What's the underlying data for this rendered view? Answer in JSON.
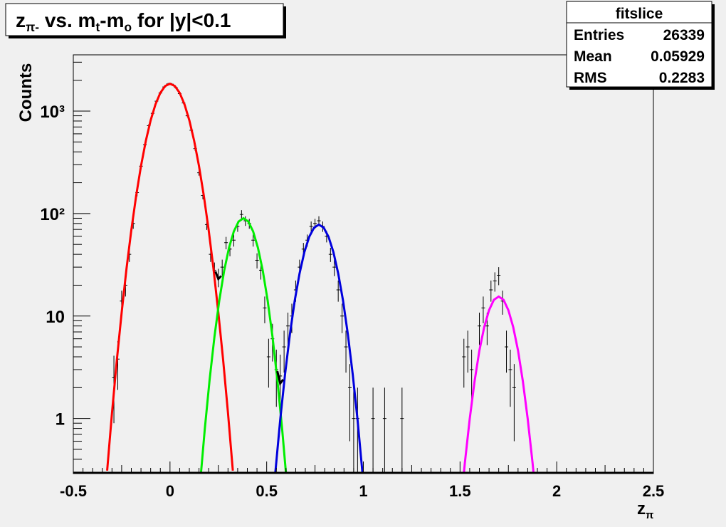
{
  "chart_data": {
    "type": "histogram-fit",
    "title": {
      "parts": [
        {
          "text": "z"
        },
        {
          "text": "π-",
          "sub": true
        },
        {
          "text": " vs. m"
        },
        {
          "text": "t",
          "sub": true
        },
        {
          "text": "-m"
        },
        {
          "text": "o",
          "sub": true
        },
        {
          "text": " for |y|<0.1"
        }
      ]
    },
    "y_label": "Counts",
    "x_label": {
      "parts": [
        {
          "text": "z"
        },
        {
          "text": "π",
          "sub": true
        }
      ]
    },
    "stats": {
      "title": "fitslice",
      "rows": [
        {
          "label": "Entries",
          "value": 26339
        },
        {
          "label": "Mean",
          "value": 0.05929
        },
        {
          "label": "RMS",
          "value": 0.2283
        }
      ]
    },
    "log_y": true,
    "xlim": [
      -0.5,
      2.5
    ],
    "ylim": [
      0.29,
      3540
    ],
    "xticks": [
      -0.5,
      0,
      0.5,
      1,
      1.5,
      2,
      2.5
    ],
    "yticks": [
      1,
      10,
      {
        "value": 100,
        "label": "10²"
      },
      {
        "value": 1000,
        "label": "10³"
      }
    ],
    "points": {
      "color": "#000000",
      "x": [
        -0.29,
        -0.27,
        -0.25,
        -0.23,
        -0.21,
        -0.19,
        -0.17,
        -0.15,
        -0.13,
        -0.11,
        -0.09,
        -0.07,
        -0.05,
        -0.03,
        -0.01,
        0.01,
        0.03,
        0.05,
        0.07,
        0.09,
        0.11,
        0.13,
        0.15,
        0.17,
        0.19,
        0.21,
        0.23,
        0.25,
        0.27,
        0.29,
        0.31,
        0.33,
        0.35,
        0.37,
        0.39,
        0.41,
        0.43,
        0.45,
        0.47,
        0.49,
        0.51,
        0.53,
        0.55,
        0.57,
        0.59,
        0.61,
        0.63,
        0.65,
        0.67,
        0.69,
        0.71,
        0.73,
        0.75,
        0.77,
        0.79,
        0.81,
        0.83,
        0.85,
        0.87,
        0.89,
        0.91,
        0.93,
        0.95,
        0.97,
        1.05,
        1.11,
        1.2,
        1.52,
        1.54,
        1.56,
        1.6,
        1.62,
        1.64,
        1.66,
        1.68,
        1.7,
        1.72,
        1.74,
        1.76,
        1.78
      ],
      "values": [
        2.5,
        3.8,
        14,
        20,
        40,
        80,
        160,
        290,
        470,
        720,
        950,
        1250,
        1500,
        1720,
        1840,
        1830,
        1700,
        1480,
        1200,
        900,
        650,
        430,
        250,
        150,
        78,
        40,
        28,
        24,
        30,
        52,
        45,
        55,
        75,
        98,
        85,
        80,
        55,
        35,
        28,
        12,
        4,
        6,
        3,
        2.6,
        5,
        8,
        10,
        18,
        30,
        45,
        55,
        75,
        80,
        85,
        75,
        60,
        40,
        30,
        18,
        10,
        5,
        2,
        1,
        1,
        1,
        1,
        1,
        4,
        5,
        3,
        8,
        12,
        8,
        18,
        22,
        25,
        14,
        5,
        3,
        2
      ],
      "errors": [
        1.6,
        1.9,
        3.7,
        4.5,
        6.3,
        9,
        12.6,
        17,
        21.7,
        26.8,
        30.8,
        35.4,
        38.7,
        41.5,
        42.9,
        42.8,
        41.2,
        38.5,
        34.6,
        30,
        25.5,
        20.7,
        15.8,
        12.2,
        8.8,
        6.3,
        5.3,
        4.9,
        5.5,
        7.2,
        6.7,
        7.4,
        8.7,
        9.9,
        9.2,
        8.9,
        7.4,
        5.9,
        5.3,
        3.5,
        2,
        2.4,
        1.7,
        1.6,
        2.2,
        2.8,
        3.2,
        4.2,
        5.5,
        6.7,
        7.4,
        8.7,
        8.9,
        9.2,
        8.7,
        7.7,
        6.3,
        5.5,
        4.2,
        3.2,
        2.2,
        1.4,
        1,
        1,
        1,
        1,
        1,
        2,
        2.2,
        1.7,
        2.8,
        3.5,
        2.8,
        4.2,
        4.7,
        5,
        3.7,
        2.2,
        1.7,
        1.4
      ]
    },
    "curves": [
      {
        "color": "#ff0000",
        "x": [
          -0.325,
          -0.3,
          -0.275,
          -0.25,
          -0.225,
          -0.2,
          -0.175,
          -0.15,
          -0.125,
          -0.1,
          -0.075,
          -0.05,
          -0.025,
          0,
          0.025,
          0.05,
          0.075,
          0.1,
          0.125,
          0.15,
          0.175,
          0.2,
          0.225,
          0.25,
          0.275,
          0.3,
          0.325
        ],
        "values": [
          0.31,
          1.13,
          3.7,
          10.8,
          28.9,
          69,
          149,
          291,
          512,
          813,
          1165,
          1506,
          1757,
          1850,
          1757,
          1506,
          1165,
          813,
          512,
          291,
          149,
          69,
          28.9,
          10.8,
          3.7,
          1.13,
          0.31
        ]
      },
      {
        "color": "#00ee00",
        "x": [
          0.155,
          0.18,
          0.205,
          0.23,
          0.255,
          0.28,
          0.305,
          0.33,
          0.355,
          0.38,
          0.405,
          0.43,
          0.455,
          0.48,
          0.505,
          0.53,
          0.555,
          0.58,
          0.605
        ],
        "values": [
          0.225,
          0.79,
          2.4,
          6.3,
          14.2,
          27.6,
          46.2,
          66.9,
          83.6,
          90,
          83.6,
          66.9,
          46.2,
          27.6,
          14.2,
          6.3,
          2.4,
          0.79,
          0.225
        ]
      },
      {
        "color": "#0000dd",
        "x": [
          0.545,
          0.57,
          0.595,
          0.62,
          0.645,
          0.67,
          0.695,
          0.72,
          0.745,
          0.77,
          0.795,
          0.82,
          0.845,
          0.87,
          0.895,
          0.92,
          0.945,
          0.97,
          0.995
        ],
        "values": [
          0.3,
          0.97,
          2.7,
          6.6,
          14.1,
          26,
          42.1,
          59.3,
          72.8,
          78,
          72.8,
          59.3,
          42.1,
          26,
          14.1,
          6.6,
          2.7,
          0.97,
          0.3
        ]
      },
      {
        "color": "#ff00ff",
        "x": [
          1.51,
          1.525,
          1.55,
          1.575,
          1.6,
          1.625,
          1.65,
          1.675,
          1.7,
          1.725,
          1.75,
          1.775,
          1.8,
          1.825,
          1.85,
          1.875,
          1.89
        ],
        "values": [
          0.19,
          0.37,
          0.99,
          2.3,
          4.6,
          7.8,
          11.4,
          14.4,
          15.5,
          14.4,
          11.4,
          7.8,
          4.6,
          2.3,
          0.99,
          0.37,
          0.19
        ]
      },
      {
        "color": "#000000",
        "x": [
          0.235,
          0.25,
          0.265
        ],
        "values": [
          27.2,
          23,
          24.6
        ]
      },
      {
        "color": "#000000",
        "x": [
          0.555,
          0.57,
          0.585
        ],
        "values": [
          2.9,
          2.2,
          2.4
        ]
      }
    ]
  }
}
